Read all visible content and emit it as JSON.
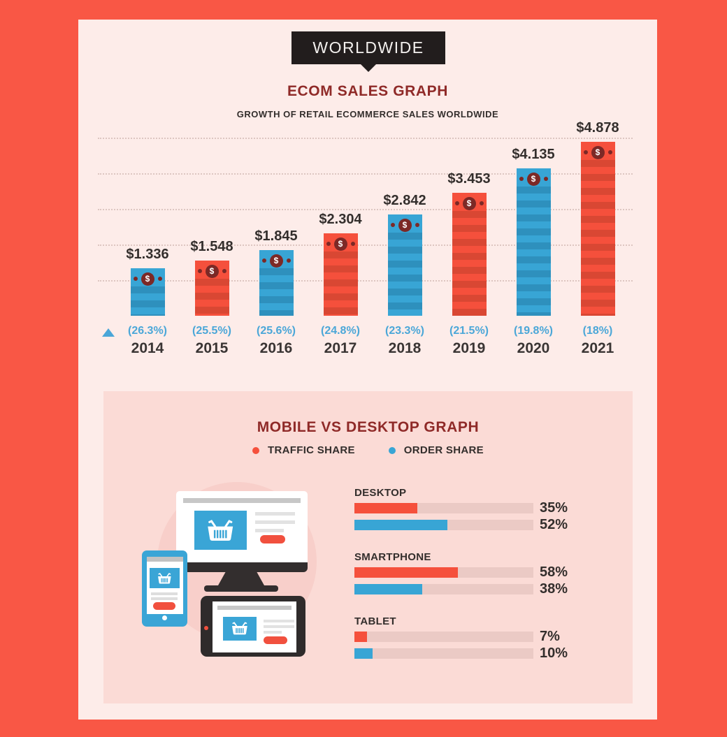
{
  "banner": {
    "label": "WORLDWIDE"
  },
  "colors": {
    "frame": "#f95745",
    "panel": "#fdece9",
    "panel_secondary": "#fbdbd6",
    "bar_red": "#f5503c",
    "bar_red_stripe": "#d94733",
    "bar_blue": "#38a5d5",
    "bar_blue_stripe": "#2e90bd",
    "coin_maroon": "#7c2926",
    "heading_maroon": "#8f2a28",
    "growth_blue": "#4ba7d8",
    "hbar_track": "#ebcac5",
    "text_dark": "#332e2c",
    "banner_bg": "#221d1d"
  },
  "ecom_chart": {
    "title": "ECOM SALES GRAPH",
    "subtitle": "GROWTH OF RETAIL ECOMMERCE SALES WORLDWIDE",
    "trend_marker_icon": "up-triangle-icon",
    "coin_icon": "dollar-coin-icon"
  },
  "mobile_desktop": {
    "title": "MOBILE VS DESKTOP GRAPH",
    "legend": [
      {
        "label": "TRAFFIC SHARE",
        "color": "#f5503c"
      },
      {
        "label": "ORDER SHARE",
        "color": "#38a5d5"
      }
    ],
    "groups": [
      {
        "label": "DESKTOP",
        "traffic_label": "35%",
        "order_label": "52%"
      },
      {
        "label": "SMARTPHONE",
        "traffic_label": "58%",
        "order_label": "38%"
      },
      {
        "label": "TABLET",
        "traffic_label": "7%",
        "order_label": "10%"
      }
    ],
    "illustration_devices": [
      "desktop-monitor",
      "smartphone",
      "tablet"
    ],
    "illustration_icon": "shopping-basket-icon"
  },
  "chart_data": [
    {
      "type": "bar",
      "title": "ECOM SALES GRAPH",
      "subtitle": "GROWTH OF RETAIL ECOMMERCE SALES WORLDWIDE",
      "categories": [
        "2014",
        "2015",
        "2016",
        "2017",
        "2018",
        "2019",
        "2020",
        "2021"
      ],
      "values": [
        1.336,
        1.548,
        1.845,
        2.304,
        2.842,
        3.453,
        4.135,
        4.878
      ],
      "value_labels": [
        "$1.336",
        "$1.548",
        "$1.845",
        "$2.304",
        "$2.842",
        "$3.453",
        "$4.135",
        "$4.878"
      ],
      "growth_labels": [
        "(26.3%)",
        "(25.5%)",
        "(25.6%)",
        "(24.8%)",
        "(23.3%)",
        "(21.5%)",
        "(19.8%)",
        "(18%)"
      ],
      "bar_colors": [
        "#38a5d5",
        "#f5503c",
        "#38a5d5",
        "#f5503c",
        "#38a5d5",
        "#f5503c",
        "#38a5d5",
        "#f5503c"
      ],
      "ylim": [
        0,
        5
      ],
      "grid": "dotted-horizontal",
      "xlabel": "",
      "ylabel": "",
      "legend_position": "none"
    },
    {
      "type": "bar",
      "orientation": "horizontal",
      "title": "MOBILE VS DESKTOP GRAPH",
      "categories": [
        "DESKTOP",
        "SMARTPHONE",
        "TABLET"
      ],
      "series": [
        {
          "name": "TRAFFIC SHARE",
          "color": "#f5503c",
          "values": [
            35,
            58,
            7
          ]
        },
        {
          "name": "ORDER SHARE",
          "color": "#38a5d5",
          "values": [
            52,
            38,
            10
          ]
        }
      ],
      "xlim": [
        0,
        100
      ],
      "value_suffix": "%",
      "legend_position": "top",
      "grid": "off"
    }
  ]
}
